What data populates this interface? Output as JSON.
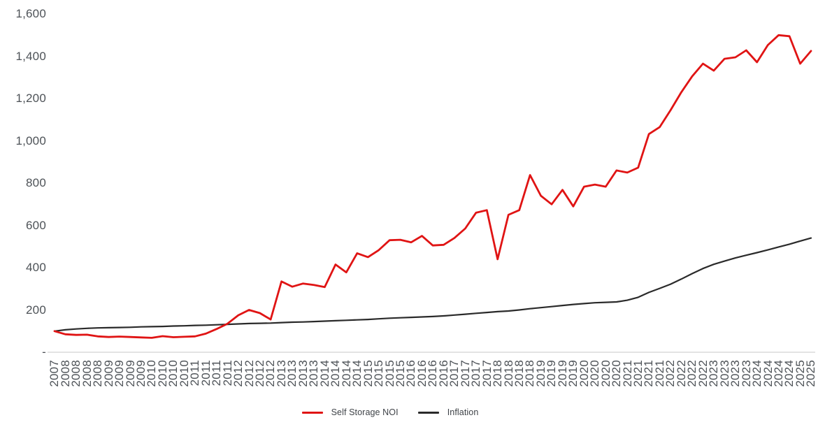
{
  "chart_data": {
    "type": "line",
    "title": "",
    "xlabel": "",
    "ylabel": "",
    "ylim": [
      0,
      1600
    ],
    "grid": false,
    "legend_position": "bottom",
    "y_ticks": [
      {
        "label": "1,600",
        "value": 1600
      },
      {
        "label": "1,400",
        "value": 1400
      },
      {
        "label": "1,200",
        "value": 1200
      },
      {
        "label": "1,000",
        "value": 1000
      },
      {
        "label": "800",
        "value": 800
      },
      {
        "label": "600",
        "value": 600
      },
      {
        "label": "400",
        "value": 400
      },
      {
        "label": "200",
        "value": 200
      },
      {
        "label": "-",
        "value": 0
      }
    ],
    "x_labels": [
      "2007",
      "2008",
      "2008",
      "2008",
      "2008",
      "2009",
      "2009",
      "2009",
      "2009",
      "2010",
      "2010",
      "2010",
      "2010",
      "2011",
      "2011",
      "2011",
      "2011",
      "2012",
      "2012",
      "2012",
      "2012",
      "2013",
      "2013",
      "2013",
      "2013",
      "2014",
      "2014",
      "2014",
      "2014",
      "2015",
      "2015",
      "2015",
      "2015",
      "2016",
      "2016",
      "2016",
      "2016",
      "2017",
      "2017",
      "2017",
      "2017",
      "2018",
      "2018",
      "2018",
      "2018",
      "2019",
      "2019",
      "2019",
      "2019",
      "2020",
      "2020",
      "2020",
      "2020",
      "2021",
      "2021",
      "2021",
      "2021",
      "2022",
      "2022",
      "2022",
      "2022",
      "2023",
      "2023",
      "2023",
      "2023",
      "2024",
      "2024",
      "2024",
      "2024",
      "2025",
      "2025"
    ],
    "series": [
      {
        "name": "Self Storage NOI",
        "color": "#e01414",
        "line_width": 2.8,
        "values": [
          100,
          85,
          82,
          83,
          75,
          72,
          74,
          72,
          70,
          68,
          76,
          71,
          73,
          75,
          88,
          110,
          135,
          175,
          200,
          185,
          155,
          335,
          310,
          325,
          318,
          308,
          415,
          378,
          468,
          450,
          483,
          530,
          532,
          520,
          550,
          505,
          508,
          540,
          585,
          660,
          672,
          440,
          650,
          672,
          838,
          740,
          700,
          768,
          690,
          783,
          793,
          783,
          860,
          850,
          873,
          1032,
          1065,
          1145,
          1230,
          1305,
          1365,
          1332,
          1388,
          1395,
          1428,
          1372,
          1453,
          1500,
          1495,
          1365,
          1425
        ]
      },
      {
        "name": "Inflation",
        "color": "#2a2a2a",
        "line_width": 2.2,
        "values": [
          100,
          106,
          110,
          113,
          115,
          116,
          117,
          118,
          120,
          121,
          122,
          124,
          125,
          127,
          128,
          130,
          132,
          134,
          136,
          137,
          138,
          140,
          142,
          143,
          145,
          147,
          149,
          151,
          153,
          155,
          158,
          161,
          163,
          165,
          167,
          169,
          172,
          176,
          180,
          184,
          188,
          192,
          195,
          200,
          206,
          211,
          216,
          221,
          226,
          230,
          234,
          236,
          238,
          246,
          260,
          283,
          302,
          322,
          346,
          372,
          396,
          416,
          431,
          446,
          459,
          471,
          484,
          498,
          511,
          526,
          540
        ]
      }
    ],
    "axis_line_color": "#dadada",
    "tick_label_color": "#4d5257"
  }
}
